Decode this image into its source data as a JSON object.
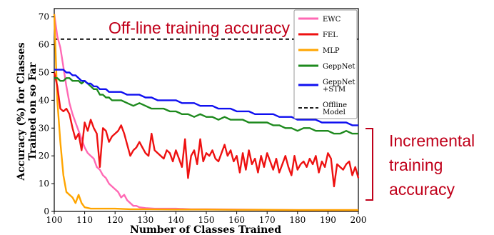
{
  "colors": {
    "EWC": "#ff69b4",
    "FEL": "#ee1111",
    "MLP": "#ffa500",
    "GeppNet": "#1e8a1e",
    "GeppNet+STM": "#1010f0",
    "Offline": "#000000",
    "annotation": "#c0001a"
  },
  "annotations": {
    "offline": "Off-line training accuracy",
    "incremental": [
      "Incremental",
      "training",
      "accuracy"
    ]
  },
  "chart_data": {
    "type": "line",
    "xlabel": "Number of Classes Trained",
    "ylabel": [
      "Accuracy (%) for Classes",
      "Trained on so Far"
    ],
    "xlim": [
      100,
      200
    ],
    "ylim": [
      0,
      73
    ],
    "xticks": [
      100,
      110,
      120,
      130,
      140,
      150,
      160,
      170,
      180,
      190,
      200
    ],
    "yticks": [
      0,
      10,
      20,
      30,
      40,
      50,
      60,
      70
    ],
    "grid": false,
    "legend_position": "top-right",
    "legend": [
      {
        "key": "EWC",
        "text": [
          "EWC"
        ]
      },
      {
        "key": "FEL",
        "text": [
          "FEL"
        ]
      },
      {
        "key": "MLP",
        "text": [
          "MLP"
        ]
      },
      {
        "key": "GeppNet",
        "text": [
          "GeppNet"
        ]
      },
      {
        "key": "GeppNet+STM",
        "text": [
          "GeppNet",
          "+STM"
        ]
      },
      {
        "key": "Offline",
        "text": [
          "Offline",
          "Model"
        ]
      }
    ],
    "series": [
      {
        "key": "Offline",
        "style": "dashed",
        "x": [
          100,
          200
        ],
        "y": [
          62,
          62
        ]
      },
      {
        "key": "EWC",
        "x": [
          100,
          101,
          102,
          103,
          104,
          105,
          106,
          107,
          108,
          109,
          110,
          111,
          112,
          113,
          114,
          115,
          116,
          117,
          118,
          119,
          120,
          121,
          122,
          123,
          124,
          125,
          126,
          127,
          128,
          130,
          133,
          136,
          140,
          145,
          150,
          160,
          170,
          180,
          190,
          200
        ],
        "y": [
          71,
          63,
          59,
          52,
          45,
          39,
          35,
          32,
          29,
          26,
          23,
          21,
          20,
          19,
          16,
          15,
          13,
          12,
          10,
          9,
          8,
          7,
          5,
          6,
          4,
          3,
          2,
          2,
          1.5,
          1.2,
          1,
          1,
          1,
          0.8,
          0.8,
          0.7,
          0.6,
          0.5,
          0.5,
          0.5
        ]
      },
      {
        "key": "FEL",
        "x": [
          100,
          101,
          102,
          103,
          104,
          105,
          106,
          107,
          108,
          109,
          110,
          111,
          112,
          113,
          114,
          115,
          116,
          117,
          118,
          119,
          120,
          121,
          122,
          123,
          124,
          125,
          126,
          127,
          128,
          129,
          130,
          131,
          132,
          133,
          134,
          135,
          136,
          137,
          138,
          139,
          140,
          141,
          142,
          143,
          144,
          145,
          146,
          147,
          148,
          149,
          150,
          151,
          152,
          153,
          154,
          155,
          156,
          157,
          158,
          159,
          160,
          161,
          162,
          163,
          164,
          165,
          166,
          167,
          168,
          169,
          170,
          171,
          172,
          173,
          174,
          175,
          176,
          177,
          178,
          179,
          180,
          181,
          182,
          183,
          184,
          185,
          186,
          187,
          188,
          189,
          190,
          191,
          192,
          193,
          194,
          195,
          196,
          197,
          198,
          199,
          200
        ],
        "y": [
          50,
          45,
          37,
          36,
          37,
          35,
          30,
          26,
          28,
          22,
          32,
          29,
          33,
          30,
          28,
          16,
          30,
          29,
          25,
          27,
          28,
          29,
          31,
          28,
          24,
          20,
          22,
          23,
          25,
          23,
          21,
          20,
          28,
          22,
          21,
          20,
          19,
          22,
          21,
          18,
          22,
          19,
          16,
          26,
          12,
          20,
          22,
          17,
          26,
          18,
          21,
          20,
          22,
          19,
          18,
          21,
          24,
          20,
          22,
          18,
          20,
          14,
          21,
          15,
          22,
          17,
          19,
          14,
          20,
          16,
          21,
          18,
          15,
          19,
          14,
          17,
          20,
          16,
          13,
          20,
          15,
          17,
          18,
          16,
          19,
          17,
          20,
          14,
          18,
          16,
          21,
          19,
          9,
          17,
          16,
          15,
          17,
          18,
          13,
          16,
          12
        ]
      },
      {
        "key": "MLP",
        "x": [
          100,
          101,
          102,
          103,
          104,
          105,
          106,
          107,
          108,
          109,
          110,
          112,
          115,
          120,
          125,
          130,
          140,
          150,
          160,
          170,
          180,
          190,
          200
        ],
        "y": [
          71,
          40,
          25,
          13,
          7,
          6,
          5,
          3,
          6,
          3,
          1.5,
          1,
          1,
          1,
          0.8,
          0.8,
          0.7,
          0.7,
          0.6,
          0.6,
          0.5,
          0.5,
          0.5
        ]
      },
      {
        "key": "GeppNet",
        "x": [
          100,
          101,
          102,
          103,
          104,
          105,
          106,
          107,
          108,
          109,
          110,
          111,
          112,
          113,
          114,
          115,
          116,
          117,
          118,
          119,
          120,
          122,
          124,
          126,
          128,
          130,
          132,
          134,
          136,
          138,
          140,
          142,
          144,
          146,
          148,
          150,
          152,
          154,
          156,
          158,
          160,
          162,
          164,
          166,
          168,
          170,
          172,
          174,
          176,
          178,
          180,
          182,
          184,
          186,
          188,
          190,
          192,
          194,
          196,
          198,
          200
        ],
        "y": [
          48,
          48,
          47,
          47,
          48,
          48,
          47,
          47,
          47,
          46,
          47,
          46,
          45,
          44,
          44,
          42,
          42,
          41,
          41,
          40,
          40,
          40,
          39,
          38,
          39,
          38,
          37,
          37,
          37,
          36,
          36,
          35,
          35,
          34,
          35,
          34,
          34,
          33,
          34,
          33,
          33,
          33,
          32,
          32,
          32,
          32,
          31,
          31,
          30,
          30,
          29,
          30,
          30,
          29,
          29,
          29,
          28,
          28,
          29,
          28,
          28
        ]
      },
      {
        "key": "GeppNet+STM",
        "x": [
          100,
          101,
          102,
          103,
          104,
          105,
          106,
          107,
          108,
          109,
          110,
          111,
          112,
          113,
          114,
          115,
          116,
          117,
          118,
          119,
          120,
          122,
          124,
          126,
          128,
          130,
          132,
          134,
          136,
          138,
          140,
          142,
          144,
          146,
          148,
          150,
          152,
          154,
          156,
          158,
          160,
          162,
          164,
          166,
          168,
          170,
          172,
          174,
          176,
          178,
          180,
          182,
          184,
          186,
          188,
          190,
          192,
          194,
          196,
          198,
          200
        ],
        "y": [
          51,
          51,
          51,
          51,
          50,
          50,
          49,
          49,
          48,
          47,
          47,
          46,
          46,
          45,
          45,
          44,
          44,
          44,
          43,
          43,
          43,
          43,
          42,
          42,
          42,
          41,
          41,
          40,
          40,
          40,
          40,
          39,
          39,
          39,
          38,
          38,
          38,
          37,
          37,
          37,
          36,
          36,
          36,
          35,
          35,
          35,
          35,
          34,
          34,
          34,
          33,
          33,
          33,
          33,
          32,
          32,
          32,
          32,
          32,
          31,
          31
        ]
      }
    ]
  }
}
